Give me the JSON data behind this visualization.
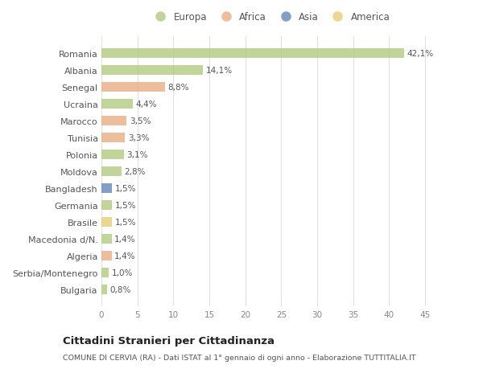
{
  "countries": [
    "Romania",
    "Albania",
    "Senegal",
    "Ucraina",
    "Marocco",
    "Tunisia",
    "Polonia",
    "Moldova",
    "Bangladesh",
    "Germania",
    "Brasile",
    "Macedonia d/N.",
    "Algeria",
    "Serbia/Montenegro",
    "Bulgaria"
  ],
  "values": [
    42.1,
    14.1,
    8.8,
    4.4,
    3.5,
    3.3,
    3.1,
    2.8,
    1.5,
    1.5,
    1.5,
    1.4,
    1.4,
    1.0,
    0.8
  ],
  "labels": [
    "42,1%",
    "14,1%",
    "8,8%",
    "4,4%",
    "3,5%",
    "3,3%",
    "3,1%",
    "2,8%",
    "1,5%",
    "1,5%",
    "1,5%",
    "1,4%",
    "1,4%",
    "1,0%",
    "0,8%"
  ],
  "continents": [
    "Europa",
    "Europa",
    "Africa",
    "Europa",
    "Africa",
    "Africa",
    "Europa",
    "Europa",
    "Asia",
    "Europa",
    "America",
    "Europa",
    "Africa",
    "Europa",
    "Europa"
  ],
  "colors": {
    "Europa": "#adc87a",
    "Africa": "#e8a87c",
    "Asia": "#5b7fb5",
    "America": "#e8c96e"
  },
  "legend_order": [
    "Europa",
    "Africa",
    "Asia",
    "America"
  ],
  "title": "Cittadini Stranieri per Cittadinanza",
  "subtitle": "COMUNE DI CERVIA (RA) - Dati ISTAT al 1° gennaio di ogni anno - Elaborazione TUTTITALIA.IT",
  "xlim": [
    0,
    47
  ],
  "xticks": [
    0,
    5,
    10,
    15,
    20,
    25,
    30,
    35,
    40,
    45
  ],
  "background_color": "#ffffff",
  "grid_color": "#e0e0e0",
  "bar_alpha": 0.75
}
